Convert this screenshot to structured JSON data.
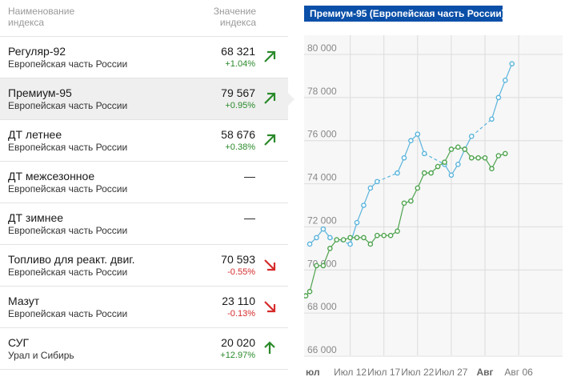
{
  "table": {
    "header": {
      "name": "Наименование\nиндекса",
      "value": "Значение\nиндекса"
    },
    "rows": [
      {
        "name": "Регуляр-92",
        "region": "Европейская часть России",
        "value": "68 321",
        "change": "+1.04%",
        "trend": "up-right",
        "color": "#2a8a2a"
      },
      {
        "name": "Премиум-95",
        "region": "Европейская часть России",
        "value": "79 567",
        "change": "+0.95%",
        "trend": "up-right",
        "color": "#2a8a2a",
        "active": true
      },
      {
        "name": "ДТ летнее",
        "region": "Европейская часть России",
        "value": "58 676",
        "change": "+0.38%",
        "trend": "up-right",
        "color": "#2a8a2a"
      },
      {
        "name": "ДТ межсезонное",
        "region": "Европейская часть России",
        "value": "—",
        "change": "",
        "trend": "none"
      },
      {
        "name": "ДТ зимнее",
        "region": "Европейская часть России",
        "value": "—",
        "change": "",
        "trend": "none"
      },
      {
        "name": "Топливо для реакт. двиг.",
        "region": "Европейская часть России",
        "value": "70 593",
        "change": "-0.55%",
        "trend": "down-right",
        "color": "#d62b2b"
      },
      {
        "name": "Мазут",
        "region": "Европейская часть России",
        "value": "23 110",
        "change": "-0.13%",
        "trend": "down-right",
        "color": "#d62b2b"
      },
      {
        "name": "СУГ",
        "region": "Урал и Сибирь",
        "value": "20 020",
        "change": "+12.97%",
        "trend": "up",
        "color": "#2a8a2a"
      }
    ]
  },
  "chart_data": {
    "type": "line",
    "title": "Премиум-95 (Европейская часть России)",
    "xlabel": "",
    "ylabel": "",
    "ylim": [
      66000,
      80000
    ],
    "yticks": [
      66000,
      68000,
      70000,
      72000,
      74000,
      76000,
      78000,
      80000
    ],
    "ytick_labels": [
      "66 000",
      "68 000",
      "70 000",
      "72 000",
      "74 000",
      "76 000",
      "78 000",
      "80 000"
    ],
    "xlim": [
      0.4,
      37.8
    ],
    "xticks": [
      {
        "label": "юл",
        "x": 0.4,
        "bold": true
      },
      {
        "label": "Июл 12",
        "x": 7
      },
      {
        "label": "Июл 17",
        "x": 12
      },
      {
        "label": "Июл 22",
        "x": 17
      },
      {
        "label": "Июл 27",
        "x": 22
      },
      {
        "label": "Авг",
        "x": 27,
        "bold": true
      },
      {
        "label": "Авг 06",
        "x": 32
      }
    ],
    "grid": true,
    "legend": "none",
    "series": [
      {
        "color": "#5ab4dc",
        "points": [
          {
            "x": 1,
            "y": 71200
          },
          {
            "x": 2,
            "y": 71500
          },
          {
            "x": 3,
            "y": 71900
          },
          {
            "x": 4,
            "y": 71500
          },
          {
            "x": 7,
            "y": 71200
          },
          {
            "x": 8,
            "y": 72200
          },
          {
            "x": 9,
            "y": 73000
          },
          {
            "x": 10,
            "y": 73800
          },
          {
            "x": 11,
            "y": 74100
          },
          {
            "x": 14,
            "y": 74500
          },
          {
            "x": 15,
            "y": 75200
          },
          {
            "x": 16,
            "y": 76000
          },
          {
            "x": 17,
            "y": 76300
          },
          {
            "x": 18,
            "y": 75400
          },
          {
            "x": 21,
            "y": 74900
          },
          {
            "x": 22,
            "y": 74400
          },
          {
            "x": 23,
            "y": 74900
          },
          {
            "x": 24,
            "y": 75600
          },
          {
            "x": 25,
            "y": 76200
          },
          {
            "x": 28,
            "y": 77000
          },
          {
            "x": 29,
            "y": 78000
          },
          {
            "x": 30,
            "y": 78800
          },
          {
            "x": 31,
            "y": 79567
          }
        ]
      },
      {
        "color": "#4ea34e",
        "points": [
          {
            "x": 0.4,
            "y": 68800
          },
          {
            "x": 1,
            "y": 69000
          },
          {
            "x": 2,
            "y": 70200
          },
          {
            "x": 3,
            "y": 70200
          },
          {
            "x": 4,
            "y": 71000
          },
          {
            "x": 5,
            "y": 71400
          },
          {
            "x": 6,
            "y": 71400
          },
          {
            "x": 7,
            "y": 71500
          },
          {
            "x": 8,
            "y": 71500
          },
          {
            "x": 9,
            "y": 71500
          },
          {
            "x": 10,
            "y": 71200
          },
          {
            "x": 11,
            "y": 71600
          },
          {
            "x": 12,
            "y": 71600
          },
          {
            "x": 13,
            "y": 71600
          },
          {
            "x": 14,
            "y": 71800
          },
          {
            "x": 15,
            "y": 73100
          },
          {
            "x": 16,
            "y": 73200
          },
          {
            "x": 17,
            "y": 73800
          },
          {
            "x": 18,
            "y": 74500
          },
          {
            "x": 19,
            "y": 74500
          },
          {
            "x": 20,
            "y": 74800
          },
          {
            "x": 21,
            "y": 75000
          },
          {
            "x": 22,
            "y": 75600
          },
          {
            "x": 23,
            "y": 75700
          },
          {
            "x": 24,
            "y": 75600
          },
          {
            "x": 25,
            "y": 75200
          },
          {
            "x": 26,
            "y": 75200
          },
          {
            "x": 27,
            "y": 75200
          },
          {
            "x": 28,
            "y": 74700
          },
          {
            "x": 29,
            "y": 75300
          },
          {
            "x": 30,
            "y": 75400
          }
        ]
      }
    ]
  }
}
